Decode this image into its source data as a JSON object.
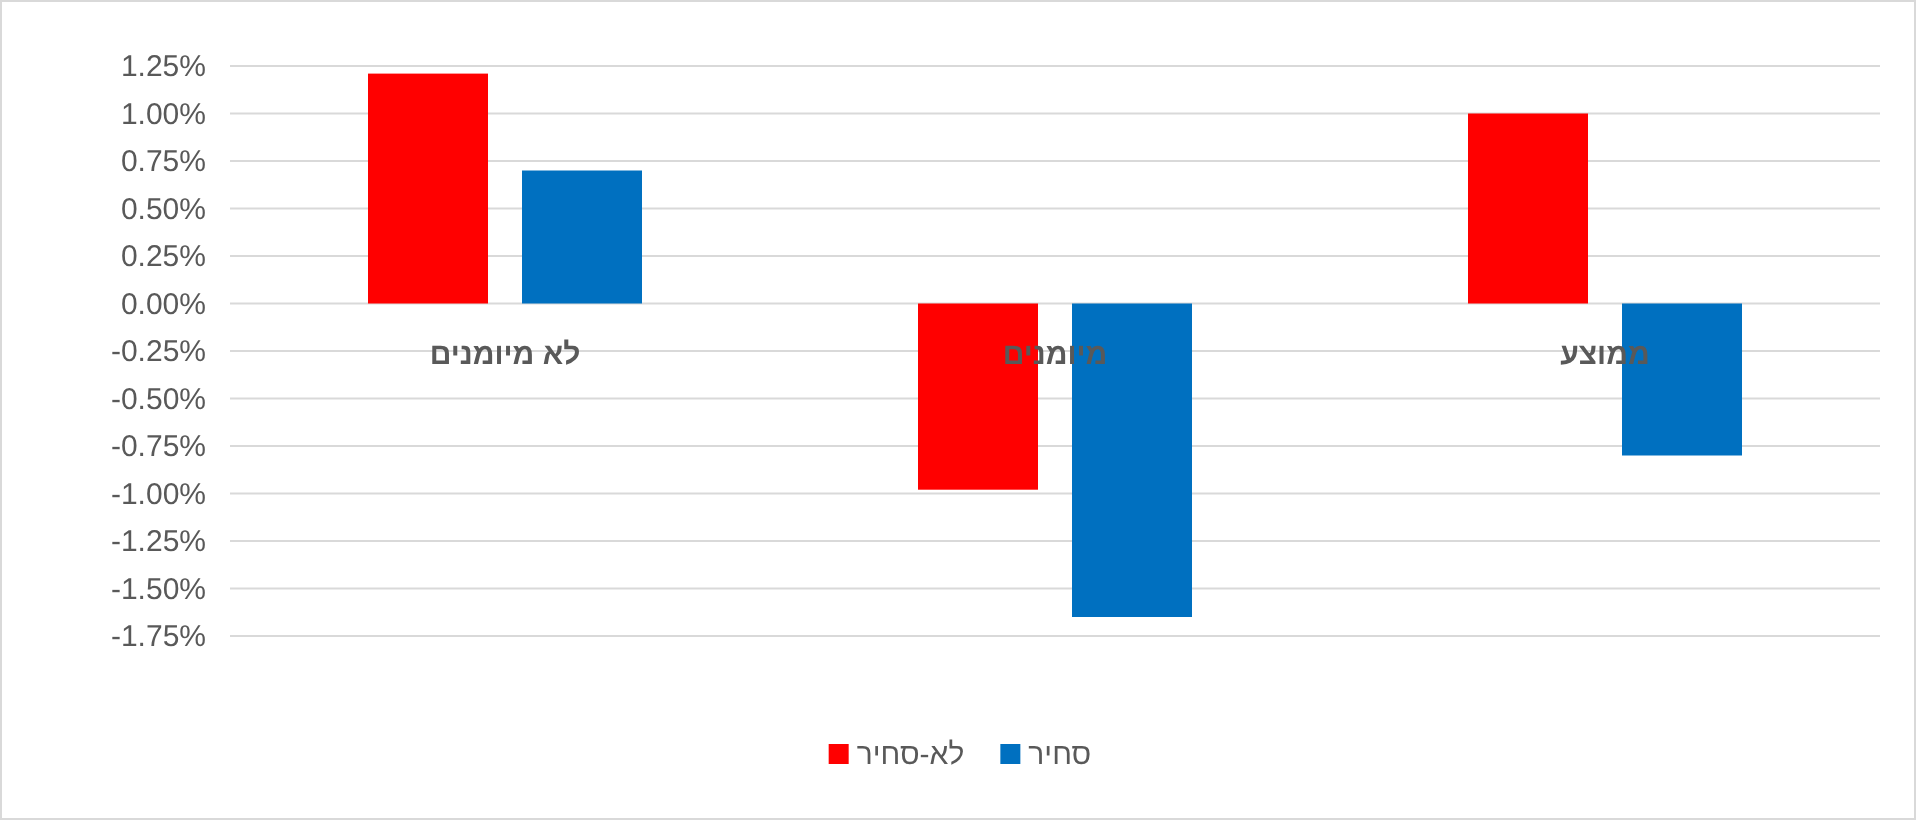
{
  "chart_data": {
    "type": "bar",
    "categories": [
      "לא מיומנים",
      "מיומנים",
      "ממוצע"
    ],
    "series": [
      {
        "name": "לא-סחיר",
        "color": "#ff0000",
        "values": [
          1.21,
          -0.98,
          1.0
        ]
      },
      {
        "name": "סחיר",
        "color": "#0070c0",
        "values": [
          0.7,
          -1.65,
          -0.8
        ]
      }
    ],
    "ylim": [
      -1.75,
      1.25
    ],
    "yticks": [
      {
        "value": -1.75,
        "label": "-1.75%"
      },
      {
        "value": -1.5,
        "label": "-1.50%"
      },
      {
        "value": -1.25,
        "label": "-1.25%"
      },
      {
        "value": -1.0,
        "label": "-1.00%"
      },
      {
        "value": -0.75,
        "label": "-0.75%"
      },
      {
        "value": -0.5,
        "label": "-0.50%"
      },
      {
        "value": -0.25,
        "label": "-0.25%"
      },
      {
        "value": 0,
        "label": "0.00%"
      },
      {
        "value": 0.25,
        "label": "0.25%"
      },
      {
        "value": 0.5,
        "label": "0.50%"
      },
      {
        "value": 0.75,
        "label": "0.75%"
      },
      {
        "value": 1.0,
        "label": "1.00%"
      },
      {
        "value": 1.25,
        "label": "1.25%"
      }
    ],
    "grid": "y",
    "legend": "bottom"
  }
}
